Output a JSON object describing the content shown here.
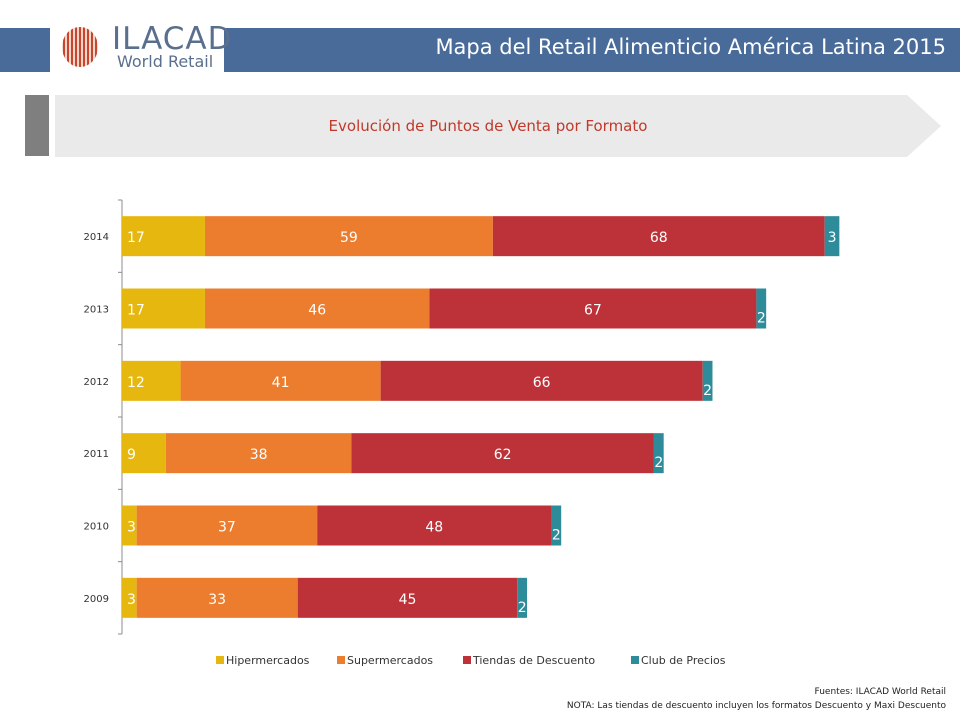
{
  "header": {
    "logo_name": "ILACAD",
    "logo_sub": "World Retail",
    "title": "Mapa del Retail Alimenticio América Latina 2015"
  },
  "section": {
    "title": "Evolución de Puntos de Venta por Formato"
  },
  "chart_data": {
    "type": "bar",
    "orientation": "horizontal",
    "stacked": true,
    "categories": [
      "2014",
      "2013",
      "2012",
      "2011",
      "2010",
      "2009"
    ],
    "series": [
      {
        "name": "Hipermercados",
        "color": "#e6b80f",
        "values": [
          17,
          17,
          12,
          9,
          3,
          3
        ]
      },
      {
        "name": "Supermercados",
        "color": "#ec7d2e",
        "values": [
          59,
          46,
          41,
          38,
          37,
          33
        ]
      },
      {
        "name": "Tiendas de Descuento",
        "color": "#bd3238",
        "values": [
          68,
          67,
          66,
          62,
          48,
          45
        ]
      },
      {
        "name": "Club de Precios",
        "color": "#2e8b99",
        "values": [
          3,
          2,
          2,
          2,
          2,
          2
        ]
      }
    ],
    "legend_position": "bottom",
    "grid": false
  },
  "footer": {
    "source": "Fuentes: ILACAD World Retail",
    "note": "NOTA: Las tiendas de descuento incluyen los formatos Descuento y Maxi Descuento"
  },
  "colors": {
    "header_band": "#496b99",
    "banner_fill": "#eaeaea",
    "banner_dark": "#7f7f7f",
    "section_title": "#c0392b"
  }
}
